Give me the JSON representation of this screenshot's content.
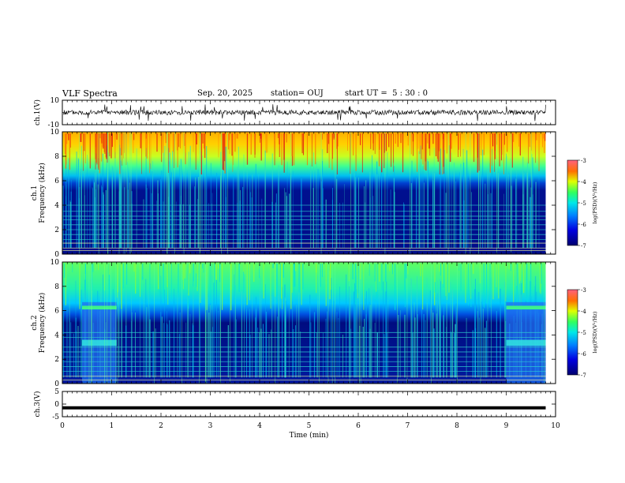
{
  "header": {
    "title": "VLF Spectra",
    "date": "Sep. 20, 2025",
    "station": "station= OUJ",
    "start_ut": "start UT =  5 : 30 : 0"
  },
  "colors": {
    "axis": "#000000",
    "background": "#ffffff",
    "colormap": [
      "#00007a",
      "#0000d8",
      "#0070ff",
      "#00d8ff",
      "#40ff80",
      "#c8ff00",
      "#ffd000",
      "#ff5000",
      "#c00000"
    ]
  },
  "chart_data": [
    {
      "id": "ch1-waveform",
      "type": "line",
      "ylabel": "ch.1(V)",
      "ylim": [
        -10,
        10
      ],
      "yticks": [
        10,
        -10
      ],
      "x_range_min": [
        0,
        9.8
      ],
      "description_values": {
        "baseline_V": 0,
        "typical_amplitude_V": 2,
        "spike_amplitude_V": 7
      }
    },
    {
      "id": "ch1-spectrogram",
      "type": "heatmap",
      "ylabel": "ch.1\nFrequency (kHz)",
      "ylim": [
        0,
        10
      ],
      "yticks": [
        0,
        2,
        4,
        6,
        8,
        10
      ],
      "x_range_min": [
        0,
        9.8
      ],
      "colorbar": {
        "label": "log(PSD)(V²/Hz)",
        "range": [
          -7,
          -3
        ],
        "ticks": [
          -3,
          -4,
          -5,
          -6,
          -7
        ]
      },
      "bands": [
        {
          "freq_kHz": [
            0,
            5.5
          ],
          "log_psd": -6.6
        },
        {
          "freq_kHz": [
            5.5,
            6.5
          ],
          "log_psd": -5.6
        },
        {
          "freq_kHz": [
            6.5,
            8
          ],
          "log_psd": -4.7
        },
        {
          "freq_kHz": [
            8,
            10
          ],
          "log_psd": -3.8
        }
      ],
      "line_freqs_kHz": [
        0.3,
        0.5,
        0.9,
        1.2,
        1.6,
        2.0,
        2.4,
        2.8,
        3.1,
        3.5,
        4.0
      ]
    },
    {
      "id": "ch2-spectrogram",
      "type": "heatmap",
      "ylabel": "ch.2\nFrequency (kHz)",
      "ylim": [
        0,
        10
      ],
      "yticks": [
        0,
        2,
        4,
        6,
        8,
        10
      ],
      "x_range_min": [
        0,
        9.8
      ],
      "colorbar": {
        "label": "log(PSD)(V²/Hz)",
        "range": [
          -7,
          -3
        ],
        "ticks": [
          -3,
          -4,
          -5,
          -6,
          -7
        ]
      },
      "bands": [
        {
          "freq_kHz": [
            0,
            5.5
          ],
          "log_psd": -6.6
        },
        {
          "freq_kHz": [
            5.5,
            7
          ],
          "log_psd": -5.4
        },
        {
          "freq_kHz": [
            7,
            10
          ],
          "log_psd": -4.9
        }
      ],
      "broadband_noise_min": [
        [
          0.4,
          1.1
        ],
        [
          9.0,
          9.8
        ]
      ],
      "line_freqs_kHz": [
        0.3,
        0.6,
        1.0,
        1.4,
        1.8,
        2.2,
        2.6,
        3.0,
        3.8,
        4.2
      ]
    },
    {
      "id": "ch3-waveform",
      "type": "line",
      "ylabel": "ch.3(V)",
      "xlabel": "Time (min)",
      "ylim": [
        -5,
        5
      ],
      "yticks": [
        5,
        0,
        -5
      ],
      "xlim": [
        0,
        10
      ],
      "xticks": [
        0,
        1,
        2,
        3,
        4,
        5,
        6,
        7,
        8,
        9,
        10
      ],
      "description_values": {
        "level_V": -1.5
      }
    }
  ]
}
